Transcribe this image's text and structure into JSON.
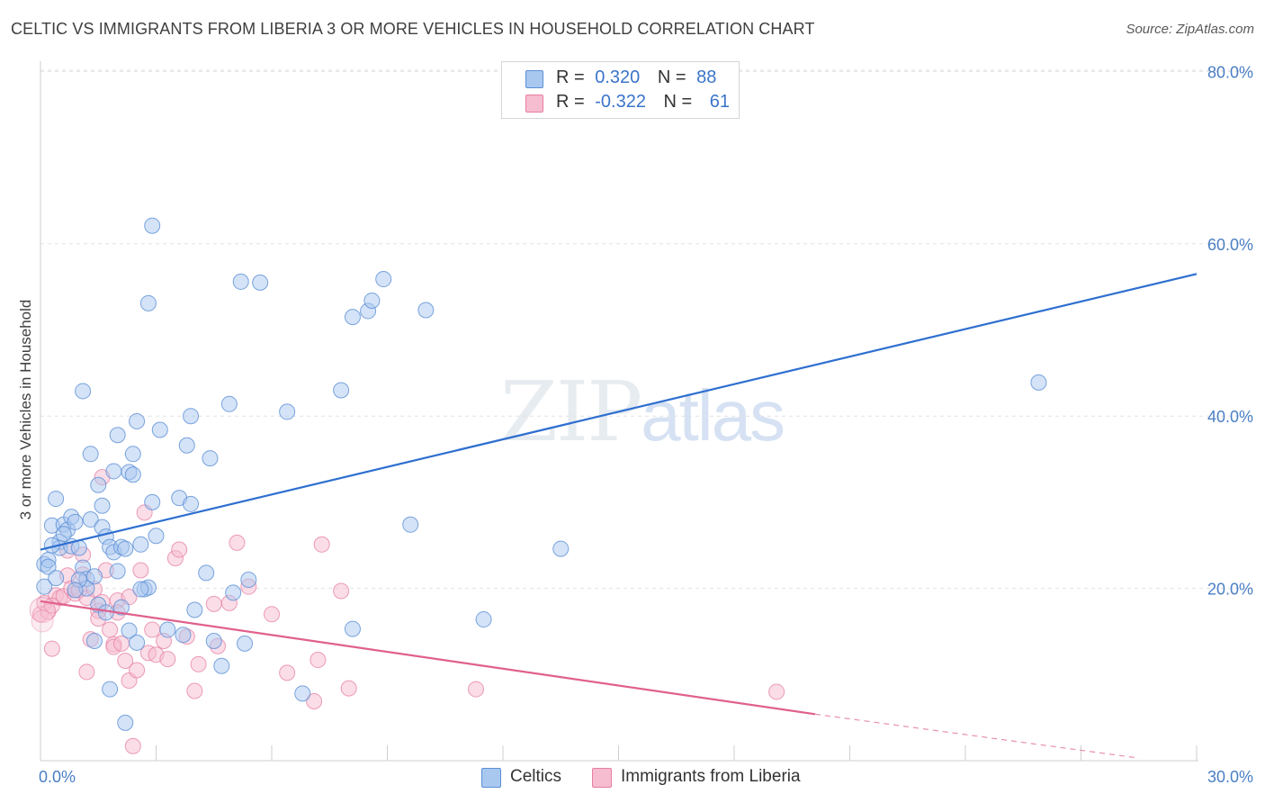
{
  "header": {
    "title": "CELTIC VS IMMIGRANTS FROM LIBERIA 3 OR MORE VEHICLES IN HOUSEHOLD CORRELATION CHART",
    "source": "Source: ZipAtlas.com"
  },
  "watermark": {
    "zip": "ZIP",
    "atlas": "atlas"
  },
  "colors": {
    "celtic_fill": "#a9c8f0",
    "celtic_stroke": "#5b8fd6",
    "celtic_line": "#2e6fd0",
    "liberia_fill": "#f6bcd0",
    "liberia_stroke": "#e67ea2",
    "liberia_line": "#e0608d",
    "tick_text": "#4a7fc4",
    "grid": "#e2e2e2"
  },
  "legend": {
    "rows": [
      {
        "r_label": "R =",
        "r_value": "0.320",
        "n_label": "N =",
        "n_value": "88"
      },
      {
        "r_label": "R =",
        "r_value": "-0.322",
        "n_label": "N =",
        "n_value": "61"
      }
    ],
    "series": [
      "Celtics",
      "Immigrants from Liberia"
    ]
  },
  "chart_data": {
    "type": "scatter",
    "title": "CELTIC VS IMMIGRANTS FROM LIBERIA 3 OR MORE VEHICLES IN HOUSEHOLD CORRELATION CHART",
    "xlabel": "",
    "ylabel": "3 or more Vehicles in Household",
    "xlim": [
      0,
      30
    ],
    "ylim": [
      0,
      80
    ],
    "x_tick_labels": [
      "0.0%",
      "30.0%"
    ],
    "y_ticks": [
      {
        "value": 20,
        "label": "20.0%"
      },
      {
        "value": 40,
        "label": "40.0%"
      },
      {
        "value": 60,
        "label": "60.0%"
      },
      {
        "value": 80,
        "label": "80.0%"
      }
    ],
    "grid": true,
    "legend_position": "top-center",
    "series": [
      {
        "name": "Celtics",
        "r": 0.32,
        "n": 88,
        "trend": {
          "x0": 0,
          "y0": 24.5,
          "x1": 30,
          "y1": 56.5
        },
        "points": [
          [
            0.1,
            20.2
          ],
          [
            0.1,
            22.8
          ],
          [
            0.2,
            23.3
          ],
          [
            0.3,
            27.3
          ],
          [
            0.4,
            30.4
          ],
          [
            0.5,
            25.4
          ],
          [
            0.5,
            24.7
          ],
          [
            0.6,
            27.4
          ],
          [
            0.7,
            26.8
          ],
          [
            0.8,
            24.9
          ],
          [
            0.8,
            28.3
          ],
          [
            0.9,
            27.7
          ],
          [
            1.0,
            24.7
          ],
          [
            1.1,
            22.4
          ],
          [
            1.2,
            21.1
          ],
          [
            1.2,
            20.0
          ],
          [
            1.1,
            42.9
          ],
          [
            1.3,
            28.0
          ],
          [
            1.3,
            35.6
          ],
          [
            1.4,
            21.4
          ],
          [
            1.5,
            18.1
          ],
          [
            1.5,
            32.0
          ],
          [
            1.6,
            29.6
          ],
          [
            1.6,
            27.1
          ],
          [
            1.7,
            26.0
          ],
          [
            1.8,
            24.8
          ],
          [
            1.9,
            33.6
          ],
          [
            1.9,
            24.2
          ],
          [
            2.0,
            22.0
          ],
          [
            2.0,
            37.8
          ],
          [
            2.1,
            24.8
          ],
          [
            2.2,
            24.6
          ],
          [
            2.3,
            33.5
          ],
          [
            2.3,
            15.1
          ],
          [
            2.4,
            35.6
          ],
          [
            2.4,
            33.2
          ],
          [
            2.5,
            39.4
          ],
          [
            2.6,
            25.1
          ],
          [
            2.7,
            19.9
          ],
          [
            2.8,
            20.1
          ],
          [
            2.8,
            53.1
          ],
          [
            2.9,
            30.0
          ],
          [
            3.0,
            26.1
          ],
          [
            3.1,
            38.4
          ],
          [
            2.9,
            62.1
          ],
          [
            3.6,
            30.5
          ],
          [
            3.8,
            36.6
          ],
          [
            3.9,
            40.0
          ],
          [
            3.9,
            29.8
          ],
          [
            4.0,
            17.5
          ],
          [
            4.3,
            21.8
          ],
          [
            4.4,
            35.1
          ],
          [
            4.7,
            11.0
          ],
          [
            4.9,
            41.4
          ],
          [
            5.0,
            19.5
          ],
          [
            5.2,
            55.6
          ],
          [
            5.3,
            13.6
          ],
          [
            5.4,
            21.0
          ],
          [
            5.7,
            55.5
          ],
          [
            6.4,
            40.5
          ],
          [
            6.8,
            7.8
          ],
          [
            7.8,
            43.0
          ],
          [
            8.1,
            51.5
          ],
          [
            8.1,
            15.3
          ],
          [
            8.5,
            52.2
          ],
          [
            8.6,
            53.4
          ],
          [
            8.9,
            55.9
          ],
          [
            9.6,
            27.4
          ],
          [
            10.0,
            52.3
          ],
          [
            11.5,
            16.4
          ],
          [
            13.5,
            24.6
          ],
          [
            25.9,
            43.9
          ],
          [
            0.2,
            22.5
          ],
          [
            0.3,
            25.0
          ],
          [
            0.6,
            26.3
          ],
          [
            1.0,
            21.0
          ],
          [
            1.4,
            13.9
          ],
          [
            1.8,
            8.3
          ],
          [
            2.2,
            4.4
          ],
          [
            2.5,
            13.7
          ],
          [
            3.3,
            15.2
          ],
          [
            3.7,
            14.6
          ],
          [
            4.5,
            13.9
          ],
          [
            2.1,
            17.8
          ],
          [
            1.7,
            17.2
          ],
          [
            0.9,
            19.8
          ],
          [
            0.4,
            21.2
          ],
          [
            2.6,
            19.9
          ]
        ]
      },
      {
        "name": "Immigrants from Liberia",
        "r": -0.322,
        "n": 61,
        "trend": {
          "x0": 0,
          "y0": 18.5,
          "x1": 20.1,
          "y1": 5.4,
          "dashed_to": {
            "x": 28.5,
            "y": 0.3
          }
        },
        "points": [
          [
            0.0,
            17.0
          ],
          [
            0.1,
            18.3
          ],
          [
            0.2,
            17.3
          ],
          [
            0.3,
            13.0
          ],
          [
            0.4,
            19.2
          ],
          [
            0.5,
            18.9
          ],
          [
            0.6,
            19.1
          ],
          [
            0.7,
            21.5
          ],
          [
            0.7,
            24.4
          ],
          [
            0.8,
            20.0
          ],
          [
            0.9,
            19.4
          ],
          [
            1.0,
            19.8
          ],
          [
            1.1,
            21.6
          ],
          [
            1.2,
            18.9
          ],
          [
            1.2,
            10.3
          ],
          [
            1.3,
            14.1
          ],
          [
            1.4,
            19.9
          ],
          [
            1.5,
            17.4
          ],
          [
            1.5,
            16.5
          ],
          [
            1.6,
            32.9
          ],
          [
            1.6,
            18.4
          ],
          [
            1.7,
            22.1
          ],
          [
            1.8,
            15.2
          ],
          [
            1.9,
            13.5
          ],
          [
            1.9,
            13.2
          ],
          [
            2.0,
            18.6
          ],
          [
            2.1,
            13.6
          ],
          [
            2.2,
            11.6
          ],
          [
            2.3,
            9.3
          ],
          [
            2.3,
            19.0
          ],
          [
            2.4,
            1.7
          ],
          [
            2.5,
            10.5
          ],
          [
            2.6,
            22.1
          ],
          [
            2.7,
            28.8
          ],
          [
            2.8,
            12.5
          ],
          [
            2.9,
            15.2
          ],
          [
            3.0,
            12.3
          ],
          [
            3.2,
            13.9
          ],
          [
            3.3,
            11.8
          ],
          [
            3.5,
            23.5
          ],
          [
            3.6,
            24.5
          ],
          [
            3.8,
            14.4
          ],
          [
            4.0,
            8.1
          ],
          [
            4.1,
            11.2
          ],
          [
            4.5,
            18.2
          ],
          [
            4.6,
            13.3
          ],
          [
            4.9,
            18.3
          ],
          [
            5.1,
            25.3
          ],
          [
            5.4,
            20.2
          ],
          [
            6.0,
            17.0
          ],
          [
            6.4,
            10.2
          ],
          [
            7.1,
            6.9
          ],
          [
            7.2,
            11.7
          ],
          [
            7.3,
            25.1
          ],
          [
            7.8,
            19.7
          ],
          [
            8.0,
            8.4
          ],
          [
            11.3,
            8.3
          ],
          [
            19.1,
            8.0
          ],
          [
            0.3,
            18.0
          ],
          [
            1.1,
            23.9
          ],
          [
            2.0,
            17.2
          ]
        ]
      }
    ]
  }
}
